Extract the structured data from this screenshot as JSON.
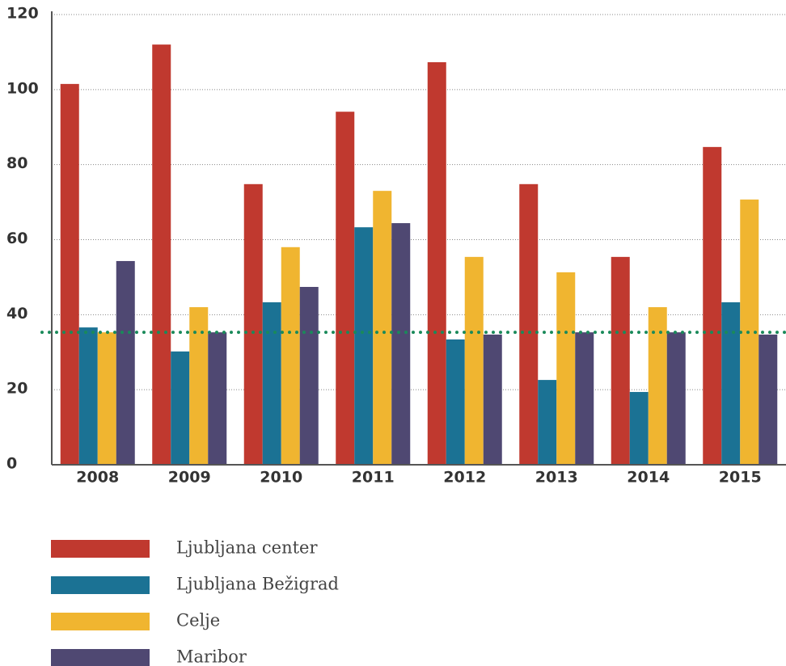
{
  "chart_data": {
    "type": "bar",
    "categories": [
      "2008",
      "2009",
      "2010",
      "2011",
      "2012",
      "2013",
      "2014",
      "2015"
    ],
    "series": [
      {
        "name": "Ljubljana center",
        "color": "#c0392f",
        "values": [
          101.5,
          112,
          74.8,
          94.1,
          107.3,
          74.8,
          55.4,
          84.7
        ]
      },
      {
        "name": "Ljubljana Bežigrad",
        "color": "#1b7294",
        "values": [
          36.6,
          30.2,
          43.3,
          63.3,
          33.4,
          22.6,
          19.4,
          43.3
        ]
      },
      {
        "name": "Celje",
        "color": "#f0b530",
        "values": [
          35.3,
          42,
          58,
          73,
          55.4,
          51.3,
          42,
          70.7
        ]
      },
      {
        "name": "Maribor",
        "color": "#4f4872",
        "values": [
          54.3,
          35.3,
          47.4,
          64.4,
          34.7,
          35.3,
          35.3,
          34.7
        ]
      }
    ],
    "reference_line": 35.3,
    "reference_color": "#1a8a5a",
    "ylim": [
      0,
      120
    ],
    "yticks": [
      0,
      20,
      40,
      60,
      80,
      100,
      120
    ],
    "grid": true
  }
}
